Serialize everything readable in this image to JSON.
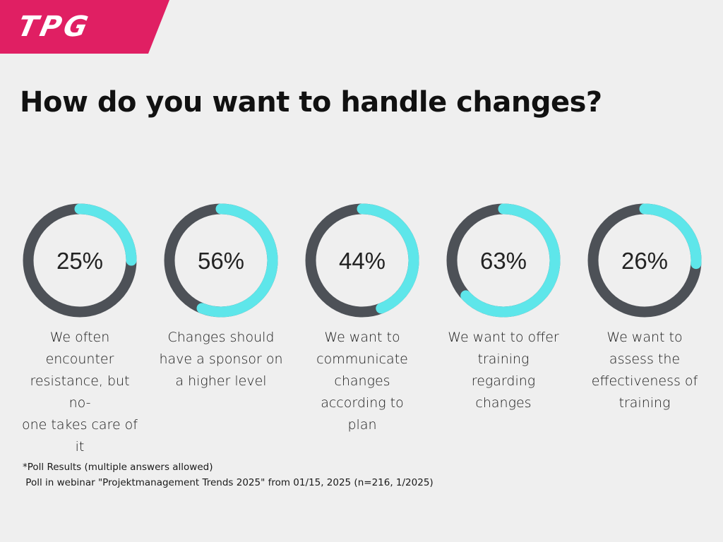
{
  "brand": {
    "logo_text": "TPG",
    "color": "#e01f63"
  },
  "title": "How do you want to handle changes?",
  "colors": {
    "track": "#4d5157",
    "fill": "#5ee6ea"
  },
  "chart_data": {
    "type": "pie",
    "title": "How do you want to handle changes?",
    "categories": [
      "We often encounter resistance, but no-one takes care of it",
      "Changes should have a sponsor on a higher level",
      "We want to communicate changes according to plan",
      "We want to offer training regarding changes",
      "We want to assess the effectiveness of training"
    ],
    "values": [
      25,
      56,
      44,
      63,
      26
    ],
    "value_labels": [
      "25%",
      "56%",
      "44%",
      "63%",
      "26%"
    ],
    "unit": "%",
    "items": [
      {
        "value": 25,
        "label_text": "25%",
        "caption_lines": [
          "We often",
          "encounter",
          "resistance, but no-",
          "one takes care of it"
        ]
      },
      {
        "value": 56,
        "label_text": "56%",
        "caption_lines": [
          "Changes should",
          "have a sponsor on",
          "a higher level"
        ]
      },
      {
        "value": 44,
        "label_text": "44%",
        "caption_lines": [
          "We want to",
          "communicate",
          "changes",
          "according to",
          "plan"
        ]
      },
      {
        "value": 63,
        "label_text": "63%",
        "caption_lines": [
          "We want to offer",
          "training",
          "regarding",
          "changes"
        ]
      },
      {
        "value": 26,
        "label_text": "26%",
        "caption_lines": [
          "We want to",
          "assess the",
          "effectiveness of",
          "training"
        ]
      }
    ]
  },
  "footnote": {
    "line1": "*Poll Results (multiple answers allowed)",
    "line2": " Poll in webinar \"Projektmanagement Trends 2025\" from 01/15, 2025 (n=216, 1/2025)"
  }
}
